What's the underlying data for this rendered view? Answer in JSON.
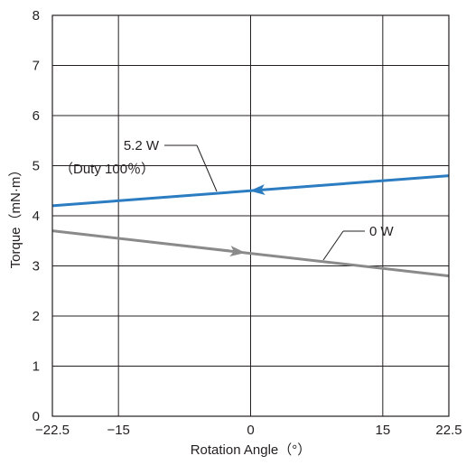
{
  "chart_data": {
    "type": "line",
    "xlabel": "Rotation Angle（°）",
    "ylabel": "Torque（mN·m）",
    "xlim": [
      -22.5,
      22.5
    ],
    "ylim": [
      0,
      8
    ],
    "x_ticks": [
      -22.5,
      -15,
      0,
      15,
      22.5
    ],
    "x_tick_labels": [
      "−22.5",
      "−15",
      "0",
      "15",
      "22.5"
    ],
    "y_ticks": [
      0,
      1,
      2,
      3,
      4,
      5,
      6,
      7,
      8
    ],
    "y_tick_labels": [
      "0",
      "1",
      "2",
      "3",
      "4",
      "5",
      "6",
      "7",
      "8"
    ],
    "grid": true,
    "series": [
      {
        "name": "5.2 W",
        "x": [
          -22.5,
          22.5
        ],
        "y": [
          4.2,
          4.8
        ],
        "color": "#2b7cc1",
        "arrow_at_x": 0.8,
        "arrow_direction": "left"
      },
      {
        "name": "0 W",
        "x": [
          -22.5,
          22.5
        ],
        "y": [
          3.7,
          2.8
        ],
        "color": "#8a8a8a",
        "arrow_at_x": -1.5,
        "arrow_direction": "right"
      }
    ],
    "annotations": [
      {
        "lines": [
          "5.2 W",
          "（Duty 100％）"
        ],
        "series": 0
      },
      {
        "lines": [
          "0 W"
        ],
        "series": 1
      }
    ]
  }
}
